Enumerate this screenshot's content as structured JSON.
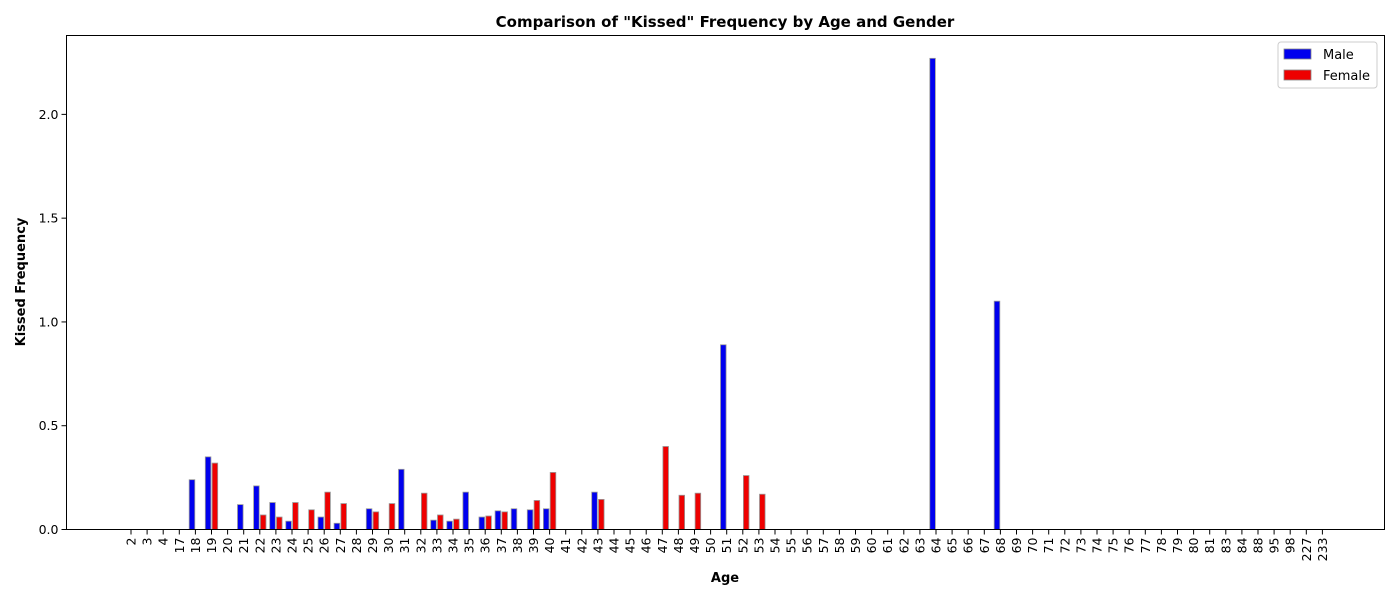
{
  "chart_data": {
    "type": "bar",
    "title": "Comparison of \"Kissed\" Frequency by Age and Gender",
    "xlabel": "Age",
    "ylabel": "Kissed Frequency",
    "ylim": [
      0,
      2.38
    ],
    "yticks": [
      "0.0",
      "0.5",
      "1.0",
      "1.5",
      "2.0"
    ],
    "grid": false,
    "legend_position": "top-right",
    "categories": [
      "2",
      "3",
      "4",
      "17",
      "18",
      "19",
      "20",
      "21",
      "22",
      "23",
      "24",
      "25",
      "26",
      "27",
      "28",
      "29",
      "30",
      "31",
      "32",
      "33",
      "34",
      "35",
      "36",
      "37",
      "38",
      "39",
      "40",
      "41",
      "42",
      "43",
      "44",
      "45",
      "46",
      "47",
      "48",
      "49",
      "50",
      "51",
      "52",
      "53",
      "54",
      "55",
      "56",
      "57",
      "58",
      "59",
      "60",
      "61",
      "62",
      "63",
      "64",
      "65",
      "66",
      "67",
      "68",
      "69",
      "70",
      "71",
      "72",
      "73",
      "74",
      "75",
      "76",
      "77",
      "78",
      "79",
      "80",
      "81",
      "83",
      "84",
      "88",
      "95",
      "98",
      "227",
      "233"
    ],
    "series": [
      {
        "name": "Male",
        "color": "#0000ee",
        "values": [
          0,
          0,
          0,
          0,
          0.24,
          0.35,
          0,
          0.12,
          0.21,
          0.13,
          0.04,
          0,
          0.06,
          0.03,
          0,
          0.1,
          0,
          0.29,
          0,
          0.045,
          0.04,
          0.18,
          0.06,
          0.09,
          0.1,
          0.095,
          0.1,
          0,
          0,
          0.18,
          0,
          0,
          0,
          0,
          0,
          0,
          0,
          0.89,
          0,
          0,
          0,
          0,
          0,
          0,
          0,
          0,
          0,
          0,
          0,
          0,
          2.27,
          0,
          0,
          0,
          1.1,
          0,
          0,
          0,
          0,
          0,
          0,
          0,
          0,
          0,
          0,
          0,
          0,
          0,
          0,
          0,
          0,
          0,
          0,
          0,
          0
        ]
      },
      {
        "name": "Female",
        "color": "#ee0000",
        "values": [
          0,
          0,
          0,
          0,
          0,
          0.32,
          0,
          0,
          0.07,
          0.06,
          0.13,
          0.095,
          0.18,
          0.125,
          0,
          0.085,
          0.125,
          0,
          0.175,
          0.07,
          0.05,
          0,
          0.065,
          0.085,
          0,
          0.14,
          0.275,
          0,
          0,
          0.145,
          0,
          0,
          0,
          0.4,
          0.165,
          0.175,
          0,
          0,
          0.26,
          0.17,
          0,
          0,
          0,
          0,
          0,
          0,
          0,
          0,
          0,
          0,
          0,
          0,
          0,
          0,
          0,
          0,
          0,
          0,
          0,
          0,
          0,
          0,
          0,
          0,
          0,
          0,
          0,
          0,
          0,
          0,
          0,
          0,
          0,
          0,
          0
        ]
      }
    ]
  }
}
